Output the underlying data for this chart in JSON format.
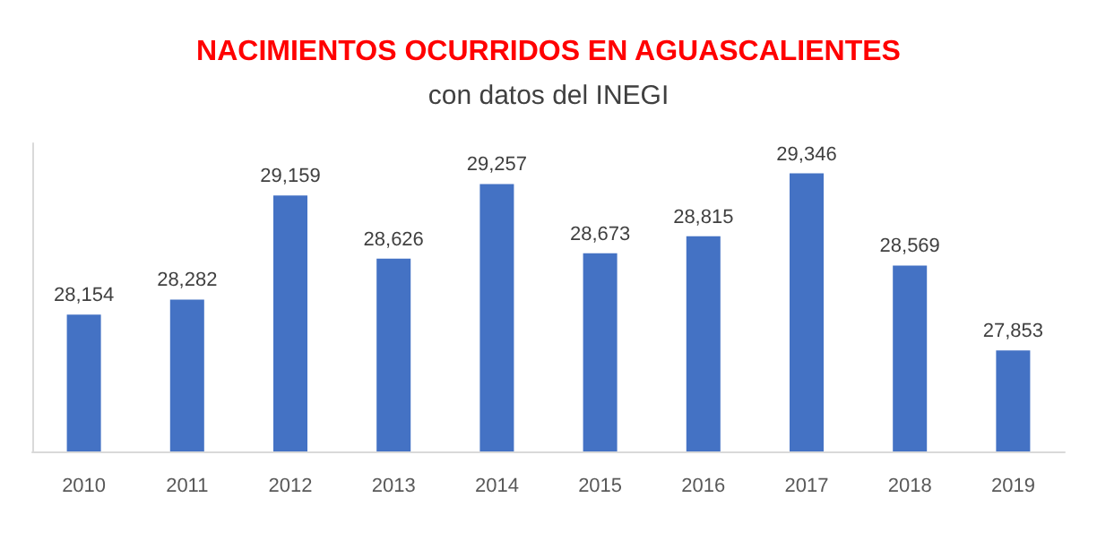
{
  "chart_data": {
    "type": "bar",
    "title": "NACIMIENTOS OCURRIDOS EN AGUASCALIENTES",
    "subtitle": "con datos del INEGI",
    "categories": [
      "2010",
      "2011",
      "2012",
      "2013",
      "2014",
      "2015",
      "2016",
      "2017",
      "2018",
      "2019"
    ],
    "values": [
      28154,
      28282,
      29159,
      28626,
      29257,
      28673,
      28815,
      29346,
      28569,
      27853
    ],
    "value_labels": [
      "28,154",
      "28,282",
      "29,159",
      "28,626",
      "29,257",
      "28,673",
      "28,815",
      "29,346",
      "28,569",
      "27,853"
    ],
    "color": "#4472c4",
    "ylim": [
      27000,
      29600
    ],
    "tick_labels": "x",
    "grid": false
  }
}
